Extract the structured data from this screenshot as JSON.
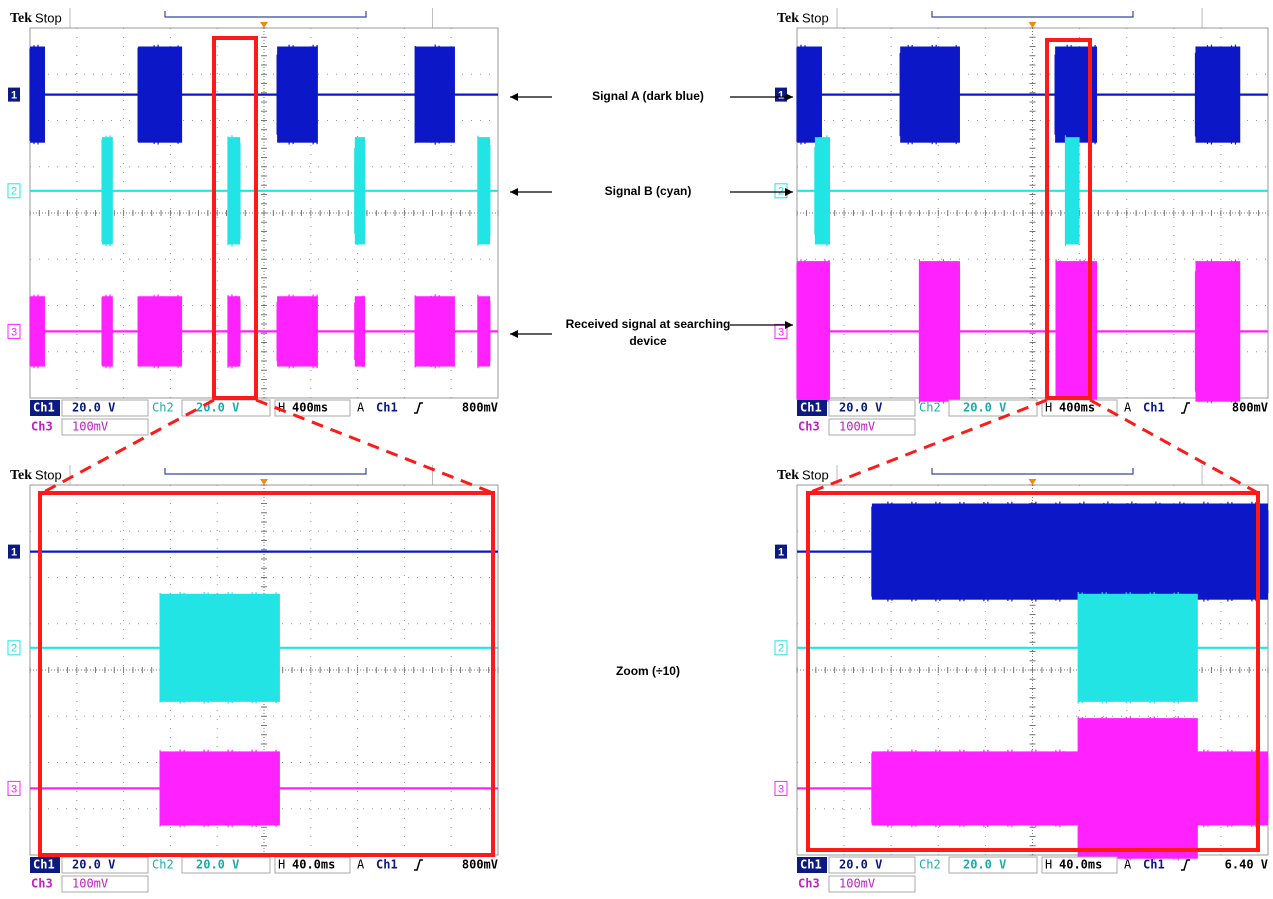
{
  "panels": [
    {
      "header": {
        "brand": "Tek",
        "status": "Stop"
      },
      "channels": [
        "1",
        "2",
        "3"
      ],
      "readout": {
        "ch1": "Ch1",
        "ch1_scale": "20.0 V",
        "ch2": "Ch2",
        "ch2_scale": "20.0 V",
        "h": "H",
        "timebase": "400ms",
        "a": "A",
        "trigger_source": "Ch1",
        "trigger_level": "800mV",
        "ch3": "Ch3",
        "ch3_scale": "100mV"
      }
    },
    {
      "header": {
        "brand": "Tek",
        "status": "Stop"
      },
      "channels": [
        "1",
        "2",
        "3"
      ],
      "readout": {
        "ch1": "Ch1",
        "ch1_scale": "20.0 V",
        "ch2": "Ch2",
        "ch2_scale": "20.0 V",
        "h": "H",
        "timebase": "400ms",
        "a": "A",
        "trigger_source": "Ch1",
        "trigger_level": "800mV",
        "ch3": "Ch3",
        "ch3_scale": "100mV"
      }
    },
    {
      "header": {
        "brand": "Tek",
        "status": "Stop"
      },
      "channels": [
        "1",
        "2",
        "3"
      ],
      "readout": {
        "ch1": "Ch1",
        "ch1_scale": "20.0 V",
        "ch2": "Ch2",
        "ch2_scale": "20.0 V",
        "h": "H",
        "timebase": "40.0ms",
        "a": "A",
        "trigger_source": "Ch1",
        "trigger_level": "800mV",
        "ch3": "Ch3",
        "ch3_scale": "100mV"
      }
    },
    {
      "header": {
        "brand": "Tek",
        "status": "Stop"
      },
      "channels": [
        "1",
        "2",
        "3"
      ],
      "readout": {
        "ch1": "Ch1",
        "ch1_scale": "20.0 V",
        "ch2": "Ch2",
        "ch2_scale": "20.0 V",
        "h": "H",
        "timebase": "40.0ms",
        "a": "A",
        "trigger_source": "Ch1",
        "trigger_level": "6.40 V",
        "ch3": "Ch3",
        "ch3_scale": "100mV"
      }
    }
  ],
  "annotations": [
    "Signal A (dark blue)",
    "Signal B (cyan)",
    "Received signal at searching device",
    "Zoom (÷10)"
  ]
}
